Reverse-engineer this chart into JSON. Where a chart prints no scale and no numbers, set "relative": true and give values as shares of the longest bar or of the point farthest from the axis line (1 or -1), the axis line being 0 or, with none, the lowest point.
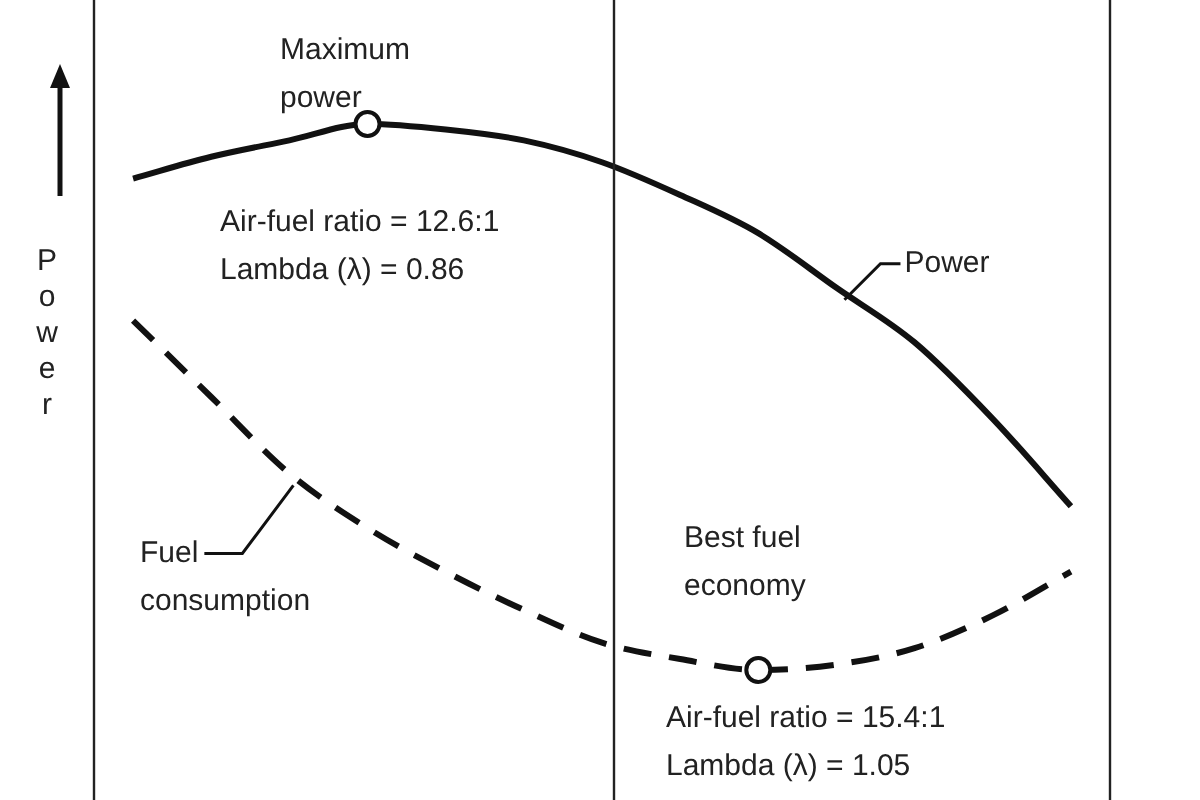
{
  "chart_data": {
    "type": "line",
    "relative": true,
    "ylabel": "Power",
    "categories": [
      null,
      null,
      null,
      null,
      null,
      null,
      null,
      null,
      null,
      null,
      null,
      null,
      null
    ],
    "series": [
      {
        "name": "Power",
        "color": "#111111",
        "line_style": "solid",
        "values": [
          0.9,
          0.94,
          0.97,
          1.0,
          0.99,
          0.97,
          0.93,
          0.87,
          0.8,
          0.7,
          0.6,
          0.46,
          0.3
        ]
      },
      {
        "name": "Fuel consumption",
        "color": "#111111",
        "line_style": "dashed",
        "values": [
          0.64,
          0.5,
          0.36,
          0.26,
          0.18,
          0.11,
          0.05,
          0.02,
          0,
          0.01,
          0.04,
          0.1,
          0.18
        ]
      }
    ],
    "grid": false,
    "annotations": [
      "Maximum power",
      "Air-fuel ratio = 12.6:1",
      "Lambda (λ) = 0.86",
      "Best fuel economy",
      "Air-fuel ratio = 15.4:1",
      "Lambda (λ) = 1.05"
    ]
  }
}
